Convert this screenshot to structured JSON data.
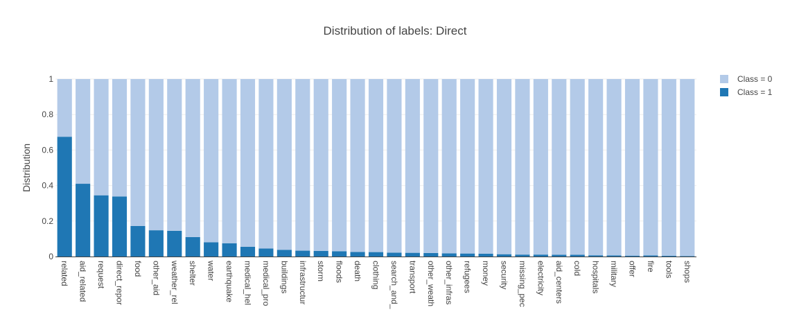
{
  "chart_data": {
    "type": "bar",
    "barmode": "stack",
    "title": "Distribution of labels: Direct",
    "xlabel": "",
    "ylabel": "Distribution",
    "ylim": [
      0,
      1
    ],
    "yticks": [
      "0",
      "0.2",
      "0.4",
      "0.6",
      "0.8",
      "1"
    ],
    "ytick_values": [
      0,
      0.2,
      0.4,
      0.6,
      0.8,
      1
    ],
    "grid": true,
    "legend_position": "top-right",
    "categories": [
      "related",
      "aid_related",
      "request",
      "direct_repor",
      "food",
      "other_aid",
      "weather_rel",
      "shelter",
      "water",
      "earthquake",
      "medical_hel",
      "medical_pro",
      "buildings",
      "infrastructur",
      "storm",
      "floods",
      "death",
      "clothing",
      "search_and_",
      "transport",
      "other_weath",
      "other_infras",
      "refugees",
      "money",
      "security",
      "missing_pec",
      "electricity",
      "aid_centers",
      "cold",
      "hospitals",
      "military",
      "offer",
      "fire",
      "tools",
      "shops"
    ],
    "series": [
      {
        "name": "Class = 1",
        "color": "#1f77b4",
        "values": [
          0.675,
          0.41,
          0.345,
          0.338,
          0.172,
          0.148,
          0.145,
          0.11,
          0.08,
          0.075,
          0.055,
          0.045,
          0.038,
          0.033,
          0.032,
          0.03,
          0.026,
          0.025,
          0.022,
          0.021,
          0.02,
          0.018,
          0.017,
          0.016,
          0.013,
          0.011,
          0.011,
          0.01,
          0.01,
          0.007,
          0.006,
          0.005,
          0.006,
          0.004,
          0.003
        ]
      },
      {
        "name": "Class = 0",
        "color": "#b3cae8",
        "values": [
          0.325,
          0.59,
          0.655,
          0.662,
          0.828,
          0.852,
          0.855,
          0.89,
          0.92,
          0.925,
          0.945,
          0.955,
          0.962,
          0.967,
          0.968,
          0.97,
          0.974,
          0.975,
          0.978,
          0.979,
          0.98,
          0.982,
          0.983,
          0.984,
          0.987,
          0.989,
          0.989,
          0.99,
          0.99,
          0.993,
          0.994,
          0.995,
          0.994,
          0.996,
          0.997
        ]
      }
    ]
  },
  "colors": {
    "class1": "#1f77b4",
    "class0": "#b3cae8",
    "grid": "#eeeeee",
    "axis_line": "#444444"
  }
}
